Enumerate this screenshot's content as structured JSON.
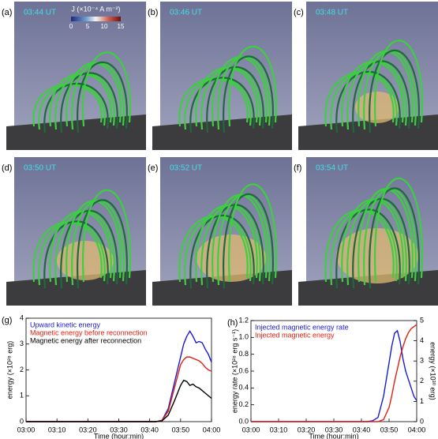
{
  "panels": [
    {
      "label": "(a)",
      "time": "03:44 UT"
    },
    {
      "label": "(b)",
      "time": "03:46 UT"
    },
    {
      "label": "(c)",
      "time": "03:48 UT"
    },
    {
      "label": "(d)",
      "time": "03:50 UT"
    },
    {
      "label": "(e)",
      "time": "03:52 UT"
    },
    {
      "label": "(f)",
      "time": "03:54 UT"
    }
  ],
  "colorbar": {
    "label": "J (×10⁻⁴ A m⁻²)",
    "range": [
      0,
      15
    ],
    "ticks": [
      0,
      5,
      10,
      15
    ]
  },
  "chart_data": [
    {
      "type": "line",
      "label": "(g)",
      "ylabel": "energy (×10²⁸ erg)",
      "xlabel": "Time (hour:min)",
      "x": [
        "03:00",
        "03:10",
        "03:20",
        "03:30",
        "03:40",
        "03:42",
        "03:44",
        "03:46",
        "03:48",
        "03:50",
        "03:51",
        "03:52",
        "03:53",
        "03:54",
        "03:55",
        "03:56",
        "03:57",
        "03:58",
        "03:59",
        "04:00"
      ],
      "xlim": [
        "03:00",
        "04:00"
      ],
      "xticks": [
        "03:00",
        "03:10",
        "03:20",
        "03:30",
        "03:40",
        "03:50",
        "04:00"
      ],
      "ylim": [
        0,
        4
      ],
      "yticks": [
        0,
        1,
        2,
        3,
        4
      ],
      "series": [
        {
          "name": "Upward kinetic energy",
          "color": "#1a1ad0",
          "values": [
            0,
            0,
            0,
            0,
            0,
            0,
            0.05,
            0.5,
            1.5,
            2.5,
            3.0,
            3.3,
            3.5,
            3.3,
            3.05,
            3.1,
            3.05,
            2.8,
            2.6,
            2.3
          ]
        },
        {
          "name": "Magnetic energy before reconnection",
          "color": "#e02010",
          "values": [
            0,
            0,
            0,
            0,
            0,
            0,
            0.05,
            0.4,
            1.3,
            2.2,
            2.4,
            2.5,
            2.5,
            2.45,
            2.4,
            2.35,
            2.25,
            2.1,
            2.0,
            1.95
          ]
        },
        {
          "name": "Magnetic energy after reconnection",
          "color": "#000000",
          "values": [
            0,
            0,
            0,
            0,
            0,
            0,
            0.03,
            0.25,
            0.8,
            1.4,
            1.6,
            1.55,
            1.4,
            1.45,
            1.35,
            1.3,
            1.2,
            1.1,
            1.0,
            0.9
          ]
        }
      ]
    },
    {
      "type": "line",
      "label": "(h)",
      "ylabel": "energy rate (×10²⁸ erg s⁻¹)",
      "y2label": "energy (×10³⁰ erg)",
      "xlabel": "Time (hour:min)",
      "x": [
        "03:00",
        "03:10",
        "03:20",
        "03:30",
        "03:40",
        "03:42",
        "03:44",
        "03:46",
        "03:48",
        "03:50",
        "03:51",
        "03:52",
        "03:53",
        "03:54",
        "03:55",
        "03:56",
        "03:57",
        "03:58",
        "03:59",
        "04:00"
      ],
      "xlim": [
        "03:00",
        "04:00"
      ],
      "xticks": [
        "03:00",
        "03:10",
        "03:20",
        "03:30",
        "03:40",
        "03:50",
        "04:00"
      ],
      "ylim": [
        0,
        1.2
      ],
      "yticks": [
        {
          "value": 0,
          "label": "0.0"
        },
        0.2,
        0.4,
        0.6,
        0.8,
        {
          "value": 1,
          "label": "1.0"
        },
        1.2
      ],
      "y2lim": [
        0,
        5
      ],
      "y2ticks": [
        0,
        1,
        2,
        3,
        4,
        5
      ],
      "series": [
        {
          "name": "Injected magnetic energy rate",
          "color": "#1a1ad0",
          "values": [
            0,
            0,
            0,
            0,
            0,
            0,
            0.01,
            0.05,
            0.3,
            0.7,
            0.9,
            1.05,
            1.08,
            0.95,
            0.75,
            0.6,
            0.5,
            0.4,
            0.3,
            0.25
          ]
        },
        {
          "name": "Injected magnetic energy",
          "color": "#e02010",
          "axis": "y2",
          "values": [
            0,
            0,
            0,
            0,
            0,
            0,
            0,
            0,
            0.1,
            0.7,
            1.3,
            2.0,
            2.6,
            3.2,
            3.7,
            4.1,
            4.4,
            4.6,
            4.7,
            4.8
          ]
        }
      ]
    }
  ]
}
